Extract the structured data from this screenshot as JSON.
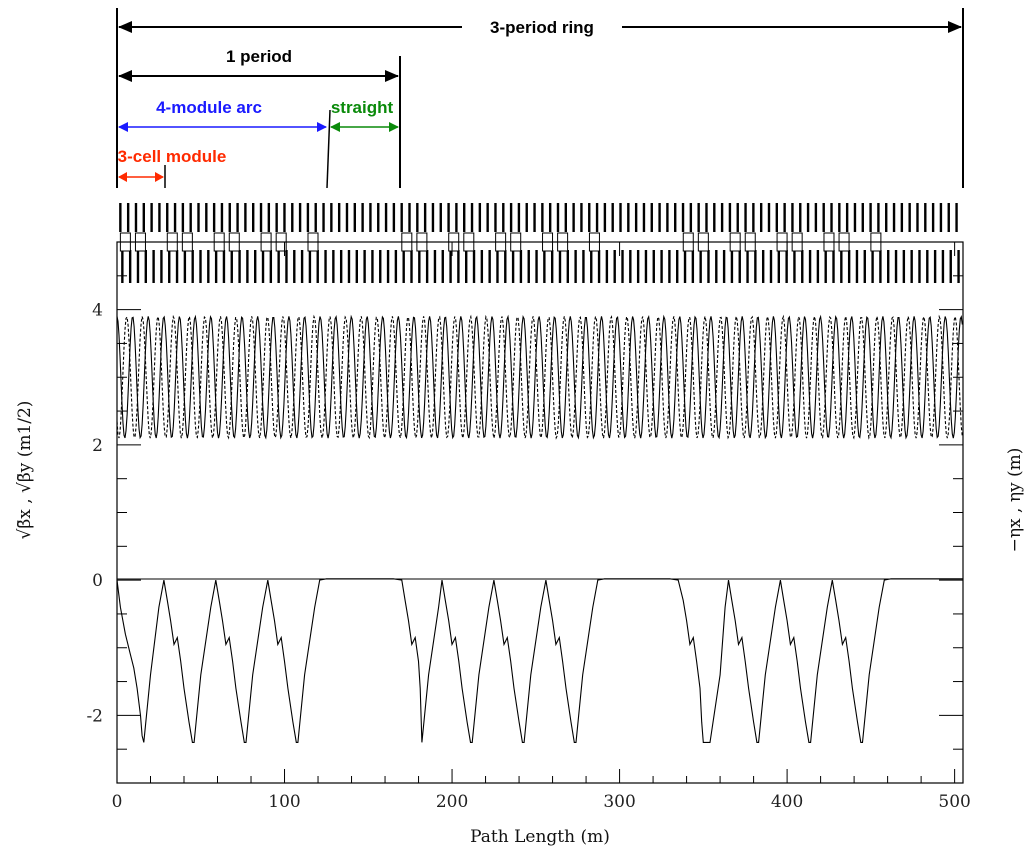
{
  "annotations": {
    "ring": "3-period ring",
    "period": "1 period",
    "arc": "4-module arc",
    "straight": "straight",
    "module": "3-cell module"
  },
  "colors": {
    "ring": "#000000",
    "period": "#000000",
    "arc": "#1a1aff",
    "straight": "#0a8a0a",
    "module": "#ff2a00",
    "curve": "#000000"
  },
  "axes": {
    "x_label": "Path Length (m)",
    "y_left_label": "√β̄x , √β̄y (m1/2)",
    "y_right_label": "−ηx , ηy (m)",
    "x_ticks": [
      "0",
      "100",
      "200",
      "300",
      "400",
      "500"
    ],
    "y_ticks": [
      "4",
      "2",
      "0",
      "-2"
    ]
  },
  "chart_data": {
    "type": "line",
    "xlabel": "Path Length (m)",
    "ylabel": "√β̄x , √β̄y (m1/2)",
    "ylabel_right": "−ηx , ηy (m)",
    "xlim": [
      0,
      505
    ],
    "ylim": [
      -3,
      5
    ],
    "grid": false,
    "marker_ranges_m": {
      "ring": [
        0,
        505
      ],
      "period": [
        0,
        168
      ],
      "arc": [
        0,
        126
      ],
      "straight": [
        126,
        168
      ],
      "module": [
        0,
        28
      ]
    },
    "series": [
      {
        "description": "sqrt beta_x (solid)",
        "x": [
          0,
          5,
          10,
          15,
          20,
          25,
          30,
          35,
          40,
          45,
          50,
          55,
          60,
          65,
          70,
          75,
          80,
          85,
          90,
          95,
          100,
          105,
          110,
          115,
          120,
          125,
          130,
          135,
          140,
          145,
          150,
          155,
          160,
          165,
          170,
          175,
          180,
          185,
          190,
          195,
          200,
          205,
          210,
          215,
          220,
          225,
          230,
          235,
          240,
          245,
          250,
          255,
          260,
          265,
          270,
          275,
          280,
          285,
          290,
          295,
          300,
          305,
          310,
          315,
          320,
          325,
          330,
          335,
          340,
          345,
          350,
          355,
          360,
          365,
          370,
          375,
          380,
          385,
          390,
          395,
          400,
          405,
          410,
          415,
          420,
          425,
          430,
          435,
          440,
          445,
          450,
          455,
          460,
          465,
          470,
          475,
          480,
          485,
          490,
          495,
          500,
          505
        ],
        "y": [
          3.9,
          2.2,
          3.9,
          2.2,
          3.9,
          2.2,
          3.9,
          2.2,
          3.9,
          2.2,
          3.9,
          2.2,
          3.9,
          2.2,
          3.9,
          2.2,
          3.9,
          2.2,
          3.9,
          2.2,
          3.9,
          2.2,
          3.9,
          2.2,
          3.9,
          2.2,
          3.9,
          2.2,
          3.9,
          2.2,
          3.9,
          2.2,
          3.9,
          2.2,
          3.9,
          2.2,
          3.9,
          2.2,
          3.9,
          2.2,
          3.9,
          2.2,
          3.9,
          2.2,
          3.9,
          2.2,
          3.9,
          2.2,
          3.9,
          2.2,
          3.9,
          2.2,
          3.9,
          2.2,
          3.9,
          2.2,
          3.9,
          2.2,
          3.9,
          2.2,
          3.9,
          2.2,
          3.9,
          2.2,
          3.9,
          2.2,
          3.9,
          2.2,
          3.9,
          2.2,
          3.9,
          2.2,
          3.9,
          2.2,
          3.9,
          2.2,
          3.9,
          2.2,
          3.9,
          2.2,
          3.9,
          2.2,
          3.9,
          2.2,
          3.9,
          2.2,
          3.9,
          2.2,
          3.9,
          2.2,
          3.9,
          2.2,
          3.9,
          2.2,
          3.9,
          2.2,
          3.9,
          2.2,
          3.9,
          2.2,
          3.9,
          2.2
        ]
      },
      {
        "description": "sqrt beta_y (dashed)",
        "x": [
          0,
          5,
          10,
          15,
          20,
          25,
          30,
          35,
          40,
          45,
          50,
          55,
          60,
          65,
          70,
          75,
          80,
          85,
          90,
          95,
          100,
          105,
          110,
          115,
          120,
          125,
          130,
          135,
          140,
          145,
          150,
          155,
          160,
          165,
          170,
          175,
          180,
          185,
          190,
          195,
          200,
          205,
          210,
          215,
          220,
          225,
          230,
          235,
          240,
          245,
          250,
          255,
          260,
          265,
          270,
          275,
          280,
          285,
          290,
          295,
          300,
          305,
          310,
          315,
          320,
          325,
          330,
          335,
          340,
          345,
          350,
          355,
          360,
          365,
          370,
          375,
          380,
          385,
          390,
          395,
          400,
          405,
          410,
          415,
          420,
          425,
          430,
          435,
          440,
          445,
          450,
          455,
          460,
          465,
          470,
          475,
          480,
          485,
          490,
          495,
          500,
          505
        ],
        "y": [
          2.1,
          3.9,
          2.1,
          3.9,
          2.1,
          3.9,
          2.1,
          3.9,
          2.1,
          3.9,
          2.1,
          3.9,
          2.1,
          3.9,
          2.1,
          3.9,
          2.1,
          3.9,
          2.1,
          3.9,
          2.1,
          3.9,
          2.1,
          3.9,
          2.1,
          3.9,
          2.1,
          3.9,
          2.1,
          3.9,
          2.1,
          3.9,
          2.1,
          3.9,
          2.1,
          3.9,
          2.1,
          3.9,
          2.1,
          3.9,
          2.1,
          3.9,
          2.1,
          3.9,
          2.1,
          3.9,
          2.1,
          3.9,
          2.1,
          3.9,
          2.1,
          3.9,
          2.1,
          3.9,
          2.1,
          3.9,
          2.1,
          3.9,
          2.1,
          3.9,
          2.1,
          3.9,
          2.1,
          3.9,
          2.1,
          3.9,
          2.1,
          3.9,
          2.1,
          3.9,
          2.1,
          3.9,
          2.1,
          3.9,
          2.1,
          3.9,
          2.1,
          3.9,
          2.1,
          3.9,
          2.1,
          3.9,
          2.1,
          3.9,
          2.1,
          3.9,
          2.1,
          3.9,
          2.1,
          3.9,
          2.1,
          3.9,
          2.1,
          3.9,
          2.1,
          3.9,
          2.1,
          3.9,
          2.1,
          3.9,
          2.1,
          3.9
        ]
      },
      {
        "description": "dispersion -eta_x",
        "x": [
          0,
          2,
          5,
          8,
          10,
          12,
          14,
          15,
          16,
          20,
          25,
          28,
          30,
          32,
          34,
          36,
          38,
          40,
          43,
          45,
          46,
          50,
          56,
          59,
          61,
          63,
          65,
          67,
          69,
          71,
          74,
          76,
          77,
          81,
          87,
          90,
          92,
          94,
          96,
          98,
          100,
          102,
          105,
          107,
          108,
          112,
          118,
          121,
          125,
          130,
          135,
          140,
          145,
          150,
          155,
          160,
          165,
          170,
          172,
          174,
          176,
          178,
          180,
          181,
          182,
          186,
          192,
          194,
          196,
          198,
          200,
          202,
          204,
          206,
          209,
          211,
          212,
          216,
          222,
          225,
          227,
          229,
          231,
          233,
          235,
          237,
          240,
          242,
          243,
          247,
          253,
          256,
          258,
          260,
          262,
          264,
          266,
          268,
          271,
          273,
          274,
          278,
          284,
          287,
          291,
          295,
          300,
          305,
          310,
          315,
          320,
          325,
          330,
          335,
          338,
          340,
          342,
          344,
          346,
          348,
          349,
          350,
          354,
          360,
          363,
          365,
          367,
          369,
          371,
          373,
          375,
          377,
          380,
          382,
          383,
          387,
          393,
          396,
          398,
          400,
          402,
          404,
          406,
          408,
          411,
          413,
          414,
          418,
          424,
          427,
          429,
          431,
          433,
          435,
          437,
          439,
          442,
          444,
          445,
          449,
          455,
          458,
          462,
          470,
          480,
          490,
          500,
          505
        ],
        "y": [
          0,
          -0.4,
          -0.8,
          -1.1,
          -1.3,
          -1.6,
          -2.0,
          -2.3,
          -2.4,
          -1.4,
          -0.4,
          0,
          -0.3,
          -0.6,
          -0.95,
          -0.85,
          -1.2,
          -1.6,
          -2.1,
          -2.4,
          -2.4,
          -1.4,
          -0.4,
          0,
          -0.3,
          -0.6,
          -0.95,
          -0.85,
          -1.2,
          -1.6,
          -2.1,
          -2.4,
          -2.4,
          -1.4,
          -0.4,
          0,
          -0.3,
          -0.6,
          -0.95,
          -0.85,
          -1.2,
          -1.6,
          -2.1,
          -2.4,
          -2.4,
          -1.4,
          -0.4,
          0,
          0.02,
          0.02,
          0.02,
          0.02,
          0.02,
          0.02,
          0.02,
          0.02,
          0.02,
          0,
          -0.3,
          -0.6,
          -0.95,
          -0.85,
          -1.2,
          -1.6,
          -2.4,
          -1.4,
          -0.4,
          0,
          -0.3,
          -0.6,
          -0.95,
          -0.85,
          -1.2,
          -1.6,
          -2.1,
          -2.4,
          -2.4,
          -1.4,
          -0.4,
          0,
          -0.3,
          -0.6,
          -0.95,
          -0.85,
          -1.2,
          -1.6,
          -2.1,
          -2.4,
          -2.4,
          -1.4,
          -0.4,
          0,
          -0.3,
          -0.6,
          -0.95,
          -0.85,
          -1.2,
          -1.6,
          -2.1,
          -2.4,
          -2.4,
          -1.4,
          -0.4,
          0,
          0.02,
          0.02,
          0.02,
          0.02,
          0.02,
          0.02,
          0.02,
          0.02,
          0.02,
          0,
          -0.3,
          -0.6,
          -0.95,
          -0.85,
          -1.2,
          -1.6,
          -2.1,
          -2.4,
          -2.4,
          -1.4,
          -0.4,
          0,
          -0.3,
          -0.6,
          -0.95,
          -0.85,
          -1.2,
          -1.6,
          -2.1,
          -2.4,
          -2.4,
          -1.4,
          -0.4,
          0,
          -0.3,
          -0.6,
          -0.95,
          -0.85,
          -1.2,
          -1.6,
          -2.1,
          -2.4,
          -2.4,
          -1.4,
          -0.4,
          0,
          -0.3,
          -0.6,
          -0.95,
          -0.85,
          -1.2,
          -1.6,
          -2.1,
          -2.4,
          -2.4,
          -1.4,
          -0.4,
          0,
          0.02,
          0.02,
          0.02,
          0.02,
          0.02,
          0.02
        ]
      }
    ],
    "lattice": {
      "cell_period_m": 9.33,
      "dipole_positions_m": [
        5,
        14,
        33,
        42,
        61,
        70,
        89,
        98,
        117,
        173,
        182,
        201,
        210,
        229,
        238,
        257,
        266,
        285,
        341,
        350,
        369,
        378,
        397,
        406,
        425,
        434,
        453
      ]
    }
  }
}
